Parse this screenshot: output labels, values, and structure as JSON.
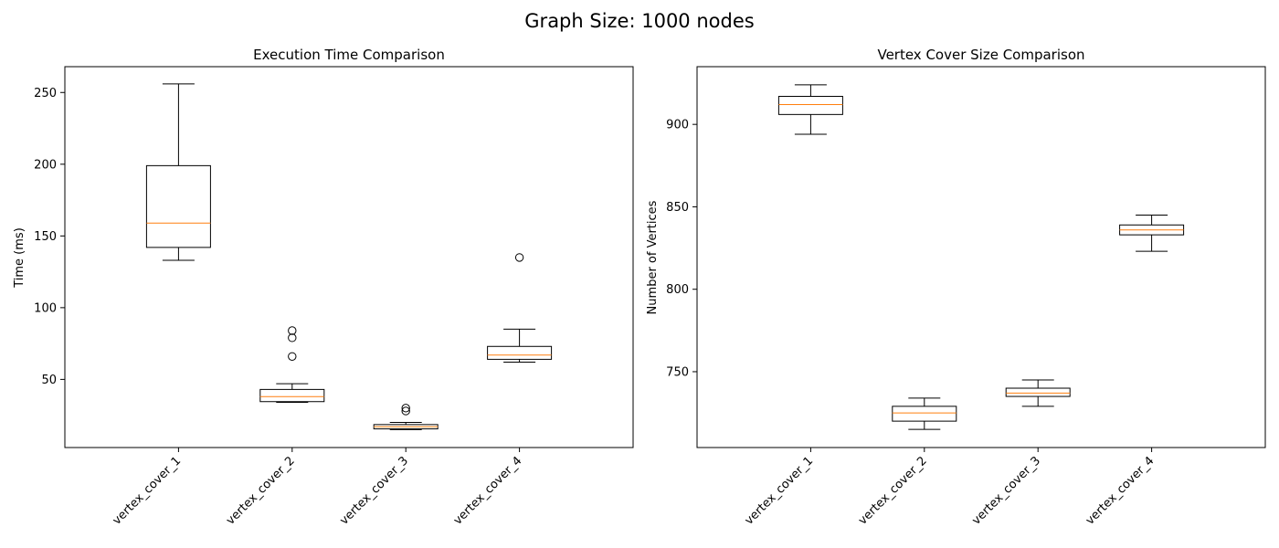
{
  "figure": {
    "suptitle": "Graph Size: 1000 nodes"
  },
  "chart_data": [
    {
      "type": "box",
      "title": "Execution Time Comparison",
      "xlabel": "",
      "ylabel": "Time (ms)",
      "ylim": [
        2.5,
        268
      ],
      "yticks": [
        50,
        100,
        150,
        200,
        250
      ],
      "xtick_rotation": 45,
      "grid": false,
      "colors": {
        "box": "#000000",
        "median": "#ff7f0e",
        "flier": "#000000"
      },
      "categories": [
        "vertex_cover_1",
        "vertex_cover_2",
        "vertex_cover_3",
        "vertex_cover_4"
      ],
      "boxes": [
        {
          "whisker_low": 133,
          "q1": 142,
          "median": 159,
          "q3": 199,
          "whisker_high": 256,
          "fliers": []
        },
        {
          "whisker_low": 34,
          "q1": 34.5,
          "median": 38,
          "q3": 43,
          "whisker_high": 47,
          "fliers": [
            66,
            79,
            84
          ]
        },
        {
          "whisker_low": 15,
          "q1": 15.5,
          "median": 17,
          "q3": 18.5,
          "whisker_high": 20,
          "fliers": [
            28,
            30
          ]
        },
        {
          "whisker_low": 62,
          "q1": 64,
          "median": 67,
          "q3": 73,
          "whisker_high": 85,
          "fliers": [
            135
          ]
        }
      ]
    },
    {
      "type": "box",
      "title": "Vertex Cover Size Comparison",
      "xlabel": "",
      "ylabel": "Number of Vertices",
      "ylim": [
        704,
        935
      ],
      "yticks": [
        750,
        800,
        850,
        900
      ],
      "xtick_rotation": 45,
      "grid": false,
      "colors": {
        "box": "#000000",
        "median": "#ff7f0e",
        "flier": "#000000"
      },
      "categories": [
        "vertex_cover_1",
        "vertex_cover_2",
        "vertex_cover_3",
        "vertex_cover_4"
      ],
      "boxes": [
        {
          "whisker_low": 894,
          "q1": 906,
          "median": 912,
          "q3": 917,
          "whisker_high": 924,
          "fliers": []
        },
        {
          "whisker_low": 715,
          "q1": 720,
          "median": 725,
          "q3": 729,
          "whisker_high": 734,
          "fliers": []
        },
        {
          "whisker_low": 729,
          "q1": 735,
          "median": 737,
          "q3": 740,
          "whisker_high": 745,
          "fliers": []
        },
        {
          "whisker_low": 823,
          "q1": 833,
          "median": 836,
          "q3": 839,
          "whisker_high": 845,
          "fliers": []
        }
      ]
    }
  ]
}
